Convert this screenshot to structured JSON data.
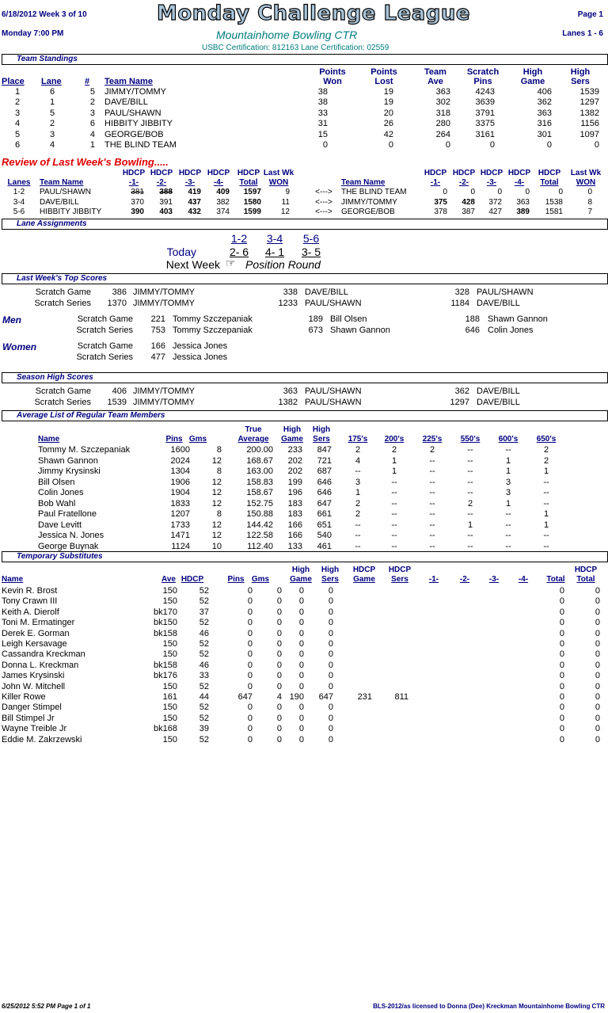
{
  "header": {
    "date_week": "6/18/2012   Week 3 of 10",
    "title": "Monday Challenge League",
    "page": "Page 1",
    "day_time": "Monday   7:00 PM",
    "center": "Mountainhome Bowling CTR",
    "lanes": "Lanes 1 - 6",
    "cert": "USBC Certification: 812163   Lane Certification: 02559"
  },
  "standings": {
    "section": "Team Standings",
    "headers": [
      "Place",
      "Lane",
      "#",
      "Team Name",
      "Points Won",
      "Points Lost",
      "Team Ave",
      "Scratch Pins",
      "High Game",
      "High Sers"
    ],
    "rows": [
      [
        "1",
        "6",
        "5",
        "JIMMY/TOMMY",
        "38",
        "19",
        "363",
        "4243",
        "406",
        "1539"
      ],
      [
        "2",
        "1",
        "2",
        "DAVE/BILL",
        "38",
        "19",
        "302",
        "3639",
        "362",
        "1297"
      ],
      [
        "3",
        "5",
        "3",
        "PAUL/SHAWN",
        "33",
        "20",
        "318",
        "3791",
        "363",
        "1382"
      ],
      [
        "4",
        "2",
        "6",
        "HIBBITY JIBBITY",
        "31",
        "26",
        "280",
        "3375",
        "316",
        "1156"
      ],
      [
        "5",
        "3",
        "4",
        "GEORGE/BOB",
        "15",
        "42",
        "264",
        "3161",
        "301",
        "1097"
      ],
      [
        "6",
        "4",
        "1",
        "THE BLIND TEAM",
        "0",
        "0",
        "0",
        "0",
        "0",
        "0"
      ]
    ]
  },
  "review": {
    "title": "Review of Last Week's Bowling.....",
    "headers_left": [
      "Lanes",
      "Team Name",
      "HDCP -1-",
      "HDCP -2-",
      "HDCP -3-",
      "HDCP -4-",
      "HDCP Total",
      "Last Wk WON"
    ],
    "headers_right": [
      "Team Name",
      "HDCP -1-",
      "HDCP -2-",
      "HDCP -3-",
      "HDCP -4-",
      "HDCP Total",
      "Last Wk WON"
    ],
    "arrow": "<--->",
    "rows": [
      [
        "1-2",
        "PAUL/SHAWN",
        "381",
        "388",
        "419",
        "409",
        "1597",
        "9",
        "THE BLIND TEAM",
        "0",
        "0",
        "0",
        "0",
        "0",
        "0"
      ],
      [
        "3-4",
        "DAVE/BILL",
        "370",
        "391",
        "437",
        "382",
        "1580",
        "11",
        "JIMMY/TOMMY",
        "375",
        "428",
        "372",
        "363",
        "1538",
        "8"
      ],
      [
        "5-6",
        "HIBBITY JIBBITY",
        "390",
        "403",
        "432",
        "374",
        "1599",
        "12",
        "GEORGE/BOB",
        "378",
        "387",
        "427",
        "389",
        "1581",
        "7"
      ]
    ]
  },
  "lane_assign": {
    "section": "Lane Assignments",
    "pairs": [
      "1-2",
      "3-4",
      "5-6"
    ],
    "today_label": "Today",
    "today": [
      "2- 6",
      "4- 1",
      "3- 5"
    ],
    "next_label": "Next Week",
    "next_icon": "pointing-hand-icon",
    "next_value": "Position Round"
  },
  "top_scores": {
    "section": "Last Week's Top Scores",
    "team": [
      [
        "Scratch Game",
        "386",
        "JIMMY/TOMMY",
        "338",
        "DAVE/BILL",
        "328",
        "PAUL/SHAWN"
      ],
      [
        "Scratch Series",
        "1370",
        "JIMMY/TOMMY",
        "1233",
        "PAUL/SHAWN",
        "1184",
        "DAVE/BILL"
      ]
    ],
    "men_label": "Men",
    "men": [
      [
        "Scratch Game",
        "221",
        "Tommy Szczepaniak",
        "189",
        "Bill Olsen",
        "188",
        "Shawn Gannon"
      ],
      [
        "Scratch Series",
        "753",
        "Tommy Szczepaniak",
        "673",
        "Shawn Gannon",
        "646",
        "Colin Jones"
      ]
    ],
    "women_label": "Women",
    "women": [
      [
        "Scratch Game",
        "166",
        "Jessica Jones"
      ],
      [
        "Scratch Series",
        "477",
        "Jessica Jones"
      ]
    ]
  },
  "season_high": {
    "section": "Season High Scores",
    "rows": [
      [
        "Scratch Game",
        "406",
        "JIMMY/TOMMY",
        "363",
        "PAUL/SHAWN",
        "362",
        "DAVE/BILL"
      ],
      [
        "Scratch Series",
        "1539",
        "JIMMY/TOMMY",
        "1382",
        "PAUL/SHAWN",
        "1297",
        "DAVE/BILL"
      ]
    ]
  },
  "averages": {
    "section": "Average List of Regular Team Members",
    "headers": [
      "Name",
      "Pins",
      "Gms",
      "True Average",
      "High Game",
      "High Sers",
      "175's",
      "200's",
      "225's",
      "550's",
      "600's",
      "650's"
    ],
    "rows": [
      [
        "Tommy M. Szczepaniak",
        "1600",
        "8",
        "200.00",
        "233",
        "847",
        "2",
        "2",
        "2",
        "--",
        "--",
        "2"
      ],
      [
        "Shawn Gannon",
        "2024",
        "12",
        "168.67",
        "202",
        "721",
        "4",
        "1",
        "--",
        "--",
        "1",
        "2"
      ],
      [
        "Jimmy Krysinski",
        "1304",
        "8",
        "163.00",
        "202",
        "687",
        "--",
        "1",
        "--",
        "--",
        "1",
        "1"
      ],
      [
        "Bill Olsen",
        "1906",
        "12",
        "158.83",
        "199",
        "646",
        "3",
        "--",
        "--",
        "--",
        "3",
        "--"
      ],
      [
        "Colin Jones",
        "1904",
        "12",
        "158.67",
        "196",
        "646",
        "1",
        "--",
        "--",
        "--",
        "3",
        "--"
      ],
      [
        "Bob Wahl",
        "1833",
        "12",
        "152.75",
        "183",
        "647",
        "2",
        "--",
        "--",
        "2",
        "1",
        "--"
      ],
      [
        "Paul Fratellone",
        "1207",
        "8",
        "150.88",
        "183",
        "661",
        "2",
        "--",
        "--",
        "--",
        "--",
        "1"
      ],
      [
        "Dave Levitt",
        "1733",
        "12",
        "144.42",
        "166",
        "651",
        "--",
        "--",
        "--",
        "1",
        "--",
        "1"
      ],
      [
        "Jessica N. Jones",
        "1471",
        "12",
        "122.58",
        "166",
        "540",
        "--",
        "--",
        "--",
        "--",
        "--",
        "--"
      ],
      [
        "George Buynak",
        "1124",
        "10",
        "112.40",
        "133",
        "461",
        "--",
        "--",
        "--",
        "--",
        "--",
        "--"
      ]
    ]
  },
  "subs": {
    "section": "Temporary Substitutes",
    "headers": [
      "Name",
      "Ave",
      "HDCP",
      "Pins",
      "Gms",
      "High Game",
      "High Sers",
      "HDCP Game",
      "HDCP Sers",
      "-1-",
      "-2-",
      "-3-",
      "-4-",
      "Total",
      "HDCP Total"
    ],
    "rows": [
      [
        "Kevin R. Brost",
        "150",
        "52",
        "0",
        "0",
        "0",
        "0",
        "",
        "",
        "",
        "",
        "",
        "",
        "0",
        "0"
      ],
      [
        "Tony Crawn III",
        "150",
        "52",
        "0",
        "0",
        "0",
        "0",
        "",
        "",
        "",
        "",
        "",
        "",
        "0",
        "0"
      ],
      [
        "Keith A. Dierolf",
        "bk170",
        "37",
        "0",
        "0",
        "0",
        "0",
        "",
        "",
        "",
        "",
        "",
        "",
        "0",
        "0"
      ],
      [
        "Toni M. Ermatinger",
        "bk150",
        "52",
        "0",
        "0",
        "0",
        "0",
        "",
        "",
        "",
        "",
        "",
        "",
        "0",
        "0"
      ],
      [
        "Derek E. Gorman",
        "bk158",
        "46",
        "0",
        "0",
        "0",
        "0",
        "",
        "",
        "",
        "",
        "",
        "",
        "0",
        "0"
      ],
      [
        "Leigh Kersavage",
        "150",
        "52",
        "0",
        "0",
        "0",
        "0",
        "",
        "",
        "",
        "",
        "",
        "",
        "0",
        "0"
      ],
      [
        "Cassandra Kreckman",
        "150",
        "52",
        "0",
        "0",
        "0",
        "0",
        "",
        "",
        "",
        "",
        "",
        "",
        "0",
        "0"
      ],
      [
        "Donna L. Kreckman",
        "bk158",
        "46",
        "0",
        "0",
        "0",
        "0",
        "",
        "",
        "",
        "",
        "",
        "",
        "0",
        "0"
      ],
      [
        "James Krysinski",
        "bk176",
        "33",
        "0",
        "0",
        "0",
        "0",
        "",
        "",
        "",
        "",
        "",
        "",
        "0",
        "0"
      ],
      [
        "John W. Mitchell",
        "150",
        "52",
        "0",
        "0",
        "0",
        "0",
        "",
        "",
        "",
        "",
        "",
        "",
        "0",
        "0"
      ],
      [
        "Killer Rowe",
        "161",
        "44",
        "647",
        "4",
        "190",
        "647",
        "231",
        "811",
        "",
        "",
        "",
        "",
        "0",
        "0"
      ],
      [
        "Danger Stimpel",
        "150",
        "52",
        "0",
        "0",
        "0",
        "0",
        "",
        "",
        "",
        "",
        "",
        "",
        "0",
        "0"
      ],
      [
        "Bill Stimpel Jr",
        "150",
        "52",
        "0",
        "0",
        "0",
        "0",
        "",
        "",
        "",
        "",
        "",
        "",
        "0",
        "0"
      ],
      [
        "Wayne Treible Jr",
        "bk168",
        "39",
        "0",
        "0",
        "0",
        "0",
        "",
        "",
        "",
        "",
        "",
        "",
        "0",
        "0"
      ],
      [
        "Eddie M. Zakrzewski",
        "150",
        "52",
        "0",
        "0",
        "0",
        "0",
        "",
        "",
        "",
        "",
        "",
        "",
        "0",
        "0"
      ]
    ]
  },
  "footer": {
    "left": "6/25/2012   5:52 PM   Page 1 of 1",
    "right": "BLS-2012/as licensed to Donna (Dee) Kreckman  Mountainhome Bowling CTR"
  }
}
